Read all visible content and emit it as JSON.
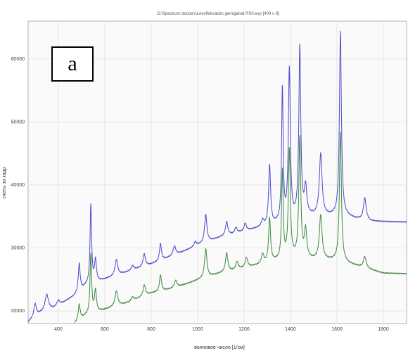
{
  "panel_label": "a",
  "chart_data": {
    "type": "line",
    "title": "D:\\Spectrum doctors\\Levofloksatsin gemigidrat RS0.exp [400 x 8]",
    "xlabel": "волновое число [1/см]",
    "ylabel": "счеты за кадр",
    "xlim": [
      270,
      1900
    ],
    "ylim": [
      18000,
      66000
    ],
    "xticks": [
      400,
      600,
      800,
      1000,
      1200,
      1400,
      1600,
      1800
    ],
    "yticks": [
      20000,
      30000,
      40000,
      50000,
      60000
    ],
    "grid": true,
    "series": [
      {
        "color": "#4b4bcc",
        "baseline": [
          [
            270,
            18200
          ],
          [
            300,
            19300
          ],
          [
            380,
            20400
          ],
          [
            480,
            22600
          ],
          [
            520,
            24000
          ],
          [
            600,
            25000
          ],
          [
            700,
            26200
          ],
          [
            800,
            27400
          ],
          [
            900,
            28800
          ],
          [
            1000,
            30400
          ],
          [
            1100,
            31700
          ],
          [
            1200,
            32600
          ],
          [
            1300,
            33500
          ],
          [
            1400,
            34200
          ],
          [
            1480,
            35000
          ],
          [
            1560,
            35000
          ],
          [
            1620,
            35200
          ],
          [
            1680,
            34600
          ],
          [
            1750,
            34200
          ],
          [
            1900,
            34100
          ]
        ],
        "peaks": [
          [
            300,
            1800,
            6
          ],
          [
            350,
            2600,
            9
          ],
          [
            400,
            800,
            7
          ],
          [
            490,
            4500,
            5
          ],
          [
            540,
            12500,
            4
          ],
          [
            560,
            3500,
            5
          ],
          [
            650,
            2500,
            7
          ],
          [
            720,
            700,
            7
          ],
          [
            770,
            2000,
            6
          ],
          [
            840,
            2700,
            5
          ],
          [
            900,
            1500,
            7
          ],
          [
            990,
            700,
            6
          ],
          [
            1035,
            4400,
            6
          ],
          [
            1125,
            2200,
            6
          ],
          [
            1165,
            900,
            6
          ],
          [
            1205,
            1200,
            6
          ],
          [
            1280,
            1000,
            6
          ],
          [
            1310,
            9500,
            5
          ],
          [
            1365,
            21000,
            4
          ],
          [
            1395,
            24000,
            5
          ],
          [
            1440,
            27000,
            5
          ],
          [
            1465,
            4500,
            6
          ],
          [
            1530,
            9800,
            7
          ],
          [
            1615,
            29000,
            5
          ],
          [
            1720,
            3500,
            7
          ]
        ]
      },
      {
        "color": "#3d8a3d",
        "baseline": [
          [
            470,
            18000
          ],
          [
            520,
            19300
          ],
          [
            600,
            20200
          ],
          [
            700,
            21300
          ],
          [
            800,
            22800
          ],
          [
            900,
            23600
          ],
          [
            1000,
            24900
          ],
          [
            1100,
            26000
          ],
          [
            1200,
            26800
          ],
          [
            1300,
            27600
          ],
          [
            1400,
            28400
          ],
          [
            1500,
            28100
          ],
          [
            1600,
            28000
          ],
          [
            1700,
            27000
          ],
          [
            1800,
            26000
          ],
          [
            1900,
            25900
          ]
        ],
        "peaks": [
          [
            490,
            2500,
            5
          ],
          [
            540,
            9500,
            4
          ],
          [
            560,
            3500,
            5
          ],
          [
            650,
            2400,
            7
          ],
          [
            720,
            600,
            7
          ],
          [
            770,
            1800,
            6
          ],
          [
            840,
            2600,
            5
          ],
          [
            905,
            1200,
            7
          ],
          [
            1035,
            4600,
            6
          ],
          [
            1125,
            3000,
            6
          ],
          [
            1170,
            1200,
            6
          ],
          [
            1210,
            1600,
            6
          ],
          [
            1280,
            1500,
            6
          ],
          [
            1310,
            7000,
            5
          ],
          [
            1365,
            14000,
            4
          ],
          [
            1395,
            17000,
            5
          ],
          [
            1440,
            19000,
            5
          ],
          [
            1465,
            4500,
            6
          ],
          [
            1530,
            7000,
            7
          ],
          [
            1615,
            20500,
            5
          ],
          [
            1720,
            1800,
            7
          ]
        ]
      }
    ]
  }
}
